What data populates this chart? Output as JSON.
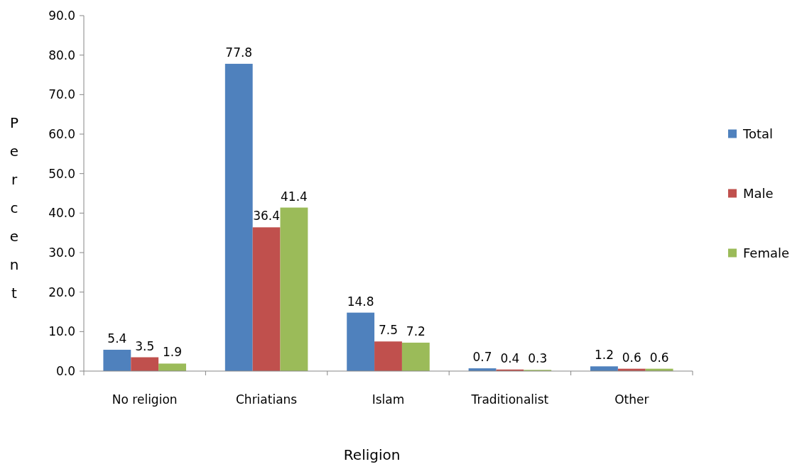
{
  "chart_data": {
    "type": "bar",
    "xlabel": "Religion",
    "ylabel": "Percent",
    "categories": [
      "No religion",
      "Chriatians",
      "Islam",
      "Traditionalist",
      "Other"
    ],
    "series": [
      {
        "name": "Total",
        "color": "#4f81bd",
        "values": [
          5.4,
          77.8,
          14.8,
          0.7,
          1.2
        ]
      },
      {
        "name": "Male",
        "color": "#c0504d",
        "values": [
          3.5,
          36.4,
          7.5,
          0.4,
          0.6
        ]
      },
      {
        "name": "Female",
        "color": "#9bbb59",
        "values": [
          1.9,
          41.4,
          7.2,
          0.3,
          0.6
        ]
      }
    ],
    "ylim": [
      0,
      90
    ],
    "yticks": [
      {
        "value": 0,
        "label": "0.0"
      },
      {
        "value": 10,
        "label": "10.0"
      },
      {
        "value": 20,
        "label": "20.0"
      },
      {
        "value": 30,
        "label": "30.0"
      },
      {
        "value": 40,
        "label": "40.0"
      },
      {
        "value": 50,
        "label": "50.0"
      },
      {
        "value": 60,
        "label": "60.0"
      },
      {
        "value": 70,
        "label": "70.0"
      },
      {
        "value": 80,
        "label": "80.0"
      },
      {
        "value": 90,
        "label": "90.0"
      }
    ],
    "data_labels": true,
    "grid": false,
    "legend": "right"
  }
}
